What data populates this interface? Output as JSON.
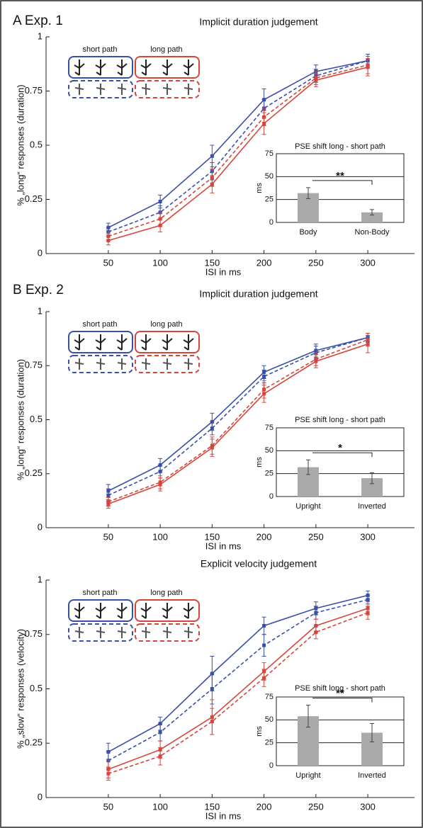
{
  "panel_labels": [
    "A Exp. 1",
    "B Exp. 2"
  ],
  "chart_data": [
    {
      "type": "line",
      "title": "Implicit duration judgement",
      "xlabel": "ISI in ms",
      "ylabel": "% „long“ responses (duration)",
      "x": [
        50,
        100,
        150,
        200,
        250,
        300
      ],
      "xlim": [
        -10,
        345
      ],
      "xticks": [
        50,
        100,
        150,
        200,
        250,
        300
      ],
      "ylim": [
        0,
        1
      ],
      "yticks": [
        0,
        0.25,
        0.5,
        0.75,
        1
      ],
      "legend": [
        {
          "label": "short path",
          "color": "#3a4fa8"
        },
        {
          "label": "long path",
          "color": "#d6453a"
        }
      ],
      "series": [
        {
          "color": "#3a4fa8",
          "dashed": false,
          "values": [
            0.12,
            0.24,
            0.45,
            0.71,
            0.84,
            0.89
          ],
          "errors": [
            0.02,
            0.03,
            0.05,
            0.05,
            0.03,
            0.03
          ]
        },
        {
          "color": "#3a4fa8",
          "dashed": true,
          "values": [
            0.1,
            0.19,
            0.38,
            0.67,
            0.82,
            0.89
          ],
          "errors": [
            0.02,
            0.03,
            0.04,
            0.04,
            0.03,
            0.02
          ]
        },
        {
          "color": "#d6453a",
          "dashed": false,
          "values": [
            0.06,
            0.13,
            0.32,
            0.6,
            0.8,
            0.86
          ],
          "errors": [
            0.02,
            0.03,
            0.04,
            0.05,
            0.03,
            0.04
          ]
        },
        {
          "color": "#d6453a",
          "dashed": true,
          "values": [
            0.08,
            0.16,
            0.35,
            0.63,
            0.81,
            0.87
          ],
          "errors": [
            0.02,
            0.03,
            0.04,
            0.04,
            0.03,
            0.04
          ]
        }
      ]
    },
    {
      "type": "bar",
      "title": "PSE shift long - short path",
      "ylabel": "ms",
      "categories": [
        "Body",
        "Non-Body"
      ],
      "values": [
        32,
        11
      ],
      "errors": [
        6,
        3
      ],
      "color": "#aaaaaa",
      "ylim": [
        0,
        75
      ],
      "yticks": [
        0,
        25,
        50,
        75
      ],
      "grid": true,
      "annotation": "**"
    },
    {
      "type": "line",
      "title": "Implicit duration judgement",
      "xlabel": "ISI in ms",
      "ylabel": "% „long“ responses (duration)",
      "x": [
        50,
        100,
        150,
        200,
        250,
        300
      ],
      "xlim": [
        -10,
        345
      ],
      "xticks": [
        50,
        100,
        150,
        200,
        250,
        300
      ],
      "ylim": [
        0,
        1
      ],
      "yticks": [
        0,
        0.25,
        0.5,
        0.75,
        1
      ],
      "legend": [
        {
          "label": "short path",
          "color": "#3a4fa8"
        },
        {
          "label": "long path",
          "color": "#d6453a"
        }
      ],
      "series": [
        {
          "color": "#3a4fa8",
          "dashed": false,
          "values": [
            0.17,
            0.29,
            0.49,
            0.72,
            0.82,
            0.88
          ],
          "errors": [
            0.03,
            0.03,
            0.04,
            0.03,
            0.03,
            0.02
          ]
        },
        {
          "color": "#3a4fa8",
          "dashed": true,
          "values": [
            0.15,
            0.26,
            0.46,
            0.7,
            0.81,
            0.88
          ],
          "errors": [
            0.03,
            0.03,
            0.03,
            0.03,
            0.03,
            0.02
          ]
        },
        {
          "color": "#d6453a",
          "dashed": false,
          "values": [
            0.11,
            0.2,
            0.37,
            0.62,
            0.77,
            0.85
          ],
          "errors": [
            0.02,
            0.03,
            0.04,
            0.04,
            0.03,
            0.04
          ]
        },
        {
          "color": "#d6453a",
          "dashed": true,
          "values": [
            0.12,
            0.21,
            0.38,
            0.64,
            0.78,
            0.87
          ],
          "errors": [
            0.02,
            0.03,
            0.04,
            0.04,
            0.03,
            0.03
          ]
        }
      ]
    },
    {
      "type": "bar",
      "title": "PSE shift long - short path",
      "ylabel": "ms",
      "categories": [
        "Upright",
        "Inverted"
      ],
      "values": [
        32,
        20
      ],
      "errors": [
        8,
        6
      ],
      "color": "#aaaaaa",
      "ylim": [
        0,
        75
      ],
      "yticks": [
        0,
        25,
        50,
        75
      ],
      "grid": true,
      "annotation": "*"
    },
    {
      "type": "line",
      "title": "Explicit velocity judgement",
      "xlabel": "ISI in ms",
      "ylabel": "% „slow“ responses (velocity)",
      "x": [
        50,
        100,
        150,
        200,
        250,
        300
      ],
      "xlim": [
        -10,
        345
      ],
      "xticks": [
        50,
        100,
        150,
        200,
        250,
        300
      ],
      "ylim": [
        0,
        1
      ],
      "yticks": [
        0,
        0.25,
        0.5,
        0.75,
        1
      ],
      "legend": [
        {
          "label": "short path",
          "color": "#3a4fa8"
        },
        {
          "label": "long path",
          "color": "#d6453a"
        }
      ],
      "series": [
        {
          "color": "#3a4fa8",
          "dashed": false,
          "values": [
            0.21,
            0.34,
            0.57,
            0.79,
            0.87,
            0.93
          ],
          "errors": [
            0.04,
            0.03,
            0.08,
            0.04,
            0.03,
            0.02
          ]
        },
        {
          "color": "#3a4fa8",
          "dashed": true,
          "values": [
            0.17,
            0.3,
            0.5,
            0.7,
            0.85,
            0.91
          ],
          "errors": [
            0.04,
            0.04,
            0.07,
            0.05,
            0.03,
            0.02
          ]
        },
        {
          "color": "#d6453a",
          "dashed": false,
          "values": [
            0.13,
            0.22,
            0.37,
            0.58,
            0.79,
            0.87
          ],
          "errors": [
            0.04,
            0.04,
            0.08,
            0.04,
            0.03,
            0.03
          ]
        },
        {
          "color": "#d6453a",
          "dashed": true,
          "values": [
            0.11,
            0.19,
            0.35,
            0.55,
            0.76,
            0.85
          ],
          "errors": [
            0.03,
            0.04,
            0.06,
            0.04,
            0.03,
            0.03
          ]
        }
      ]
    },
    {
      "type": "bar",
      "title": "PSE shift long - short path",
      "ylabel": "ms",
      "categories": [
        "Upright",
        "Inverted"
      ],
      "values": [
        54,
        36
      ],
      "errors": [
        12,
        10
      ],
      "color": "#aaaaaa",
      "ylim": [
        0,
        75
      ],
      "yticks": [
        0,
        25,
        50,
        75
      ],
      "grid": true,
      "annotation": "**"
    }
  ]
}
